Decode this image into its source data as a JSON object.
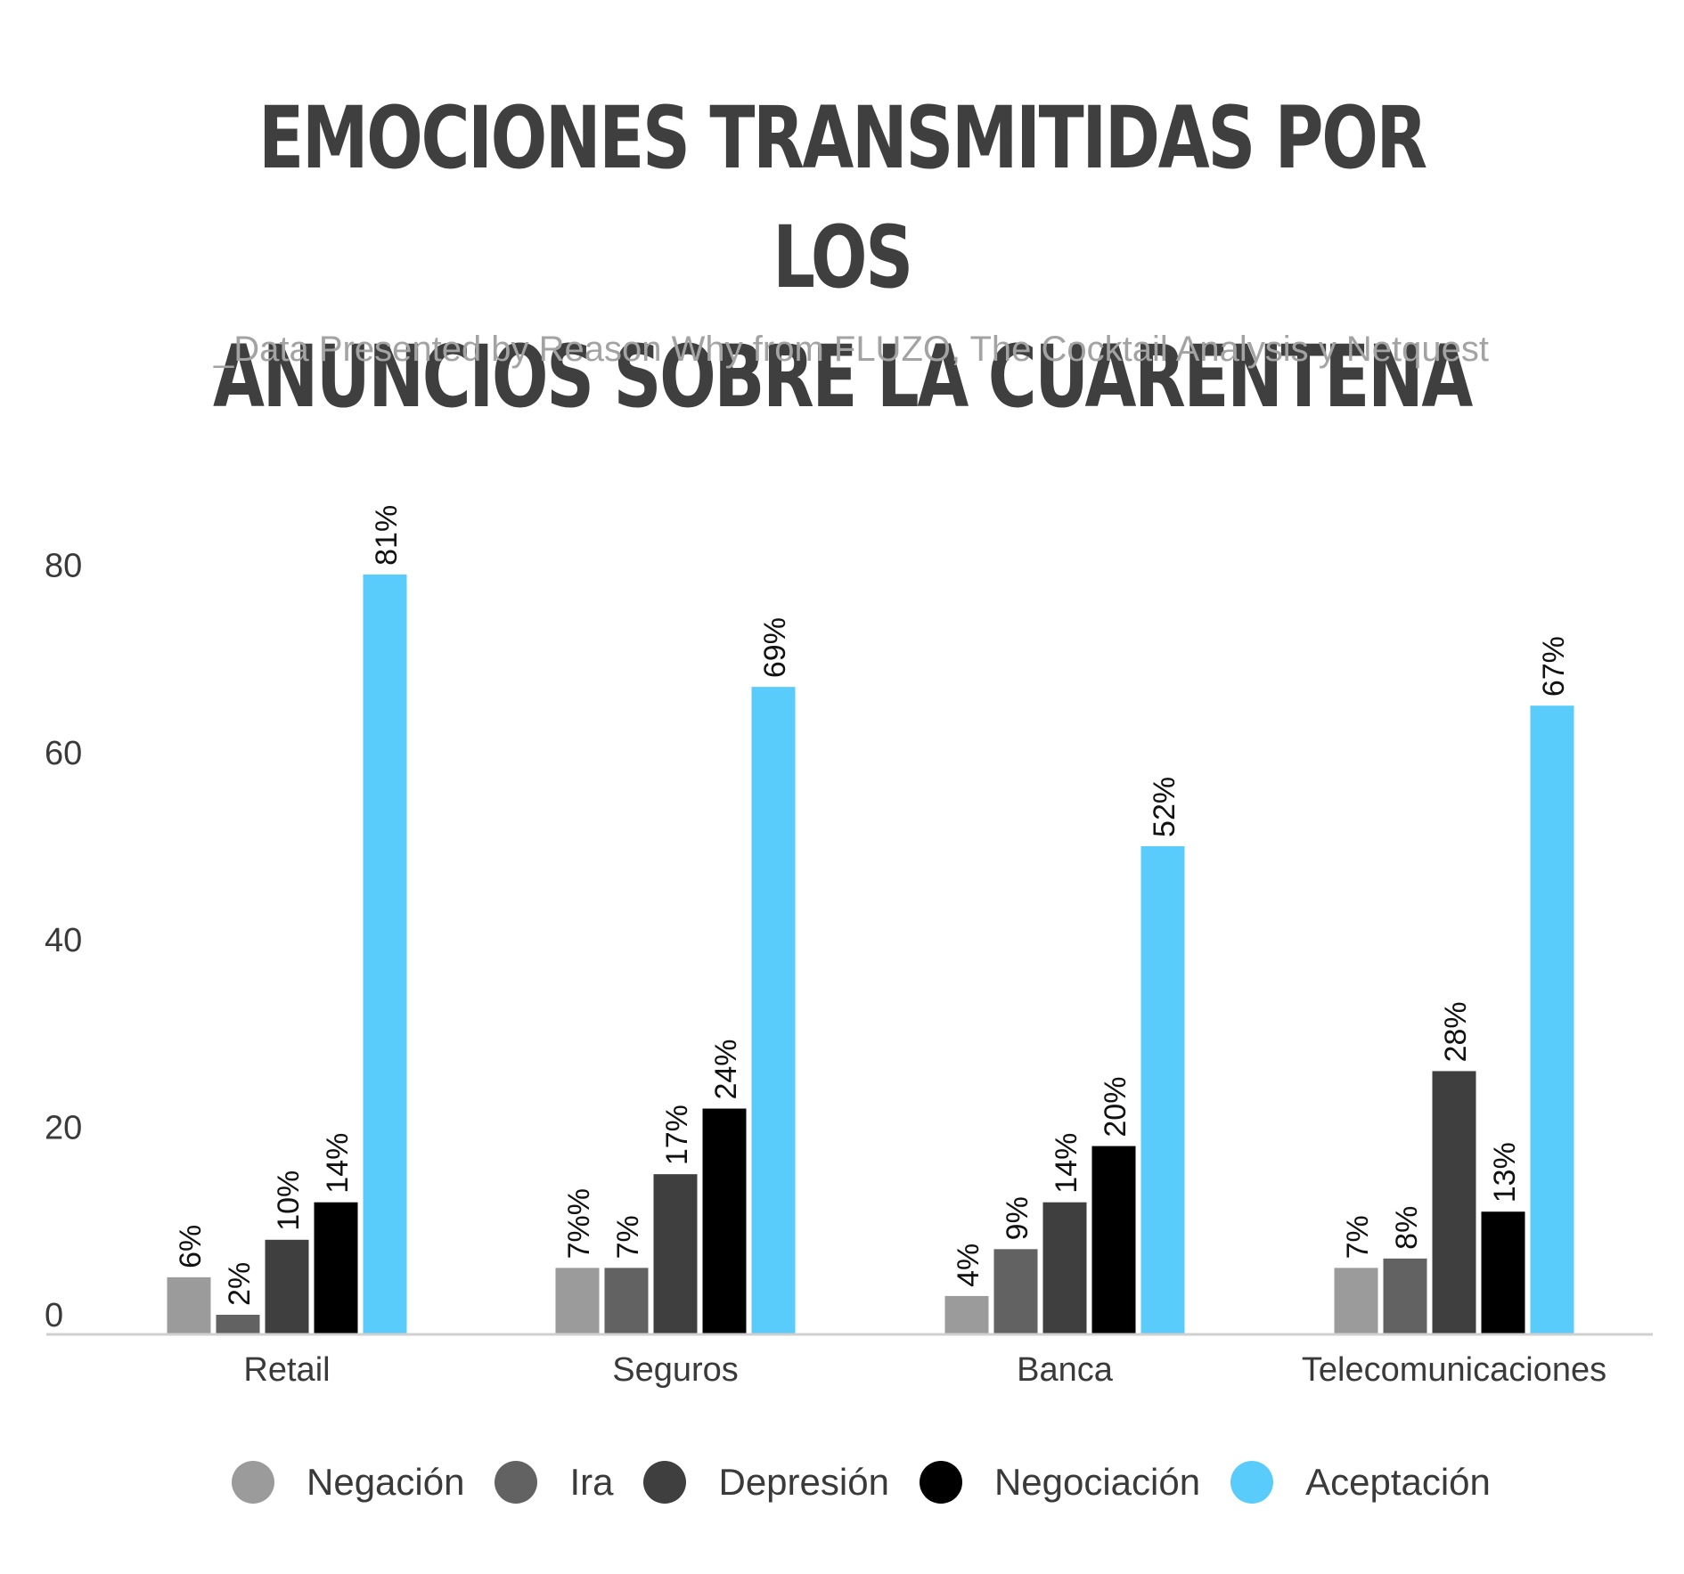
{
  "chart_data": {
    "type": "bar",
    "title_lines": [
      "EMOCIONES TRANSMITIDAS POR LOS",
      "ANUNCIOS SOBRE LA CUARENTENA"
    ],
    "subtitle": "_Data Presented by Reason Why from FLUZO, The Cocktail Analysis y Netquest",
    "categories": [
      "Retail",
      "Seguros",
      "Banca",
      "Telecomunicaciones"
    ],
    "series": [
      {
        "name": "Negación",
        "color": "#9b9b9b",
        "values": [
          6,
          7,
          4,
          7
        ],
        "labels": [
          "6%",
          "7%%",
          "4%",
          "7%"
        ]
      },
      {
        "name": "Ira",
        "color": "#626262",
        "values": [
          2,
          7,
          9,
          8
        ],
        "labels": [
          "2%",
          "7%",
          "9%",
          "8%"
        ]
      },
      {
        "name": "Depresión",
        "color": "#3f3f3f",
        "values": [
          10,
          17,
          14,
          28
        ],
        "labels": [
          "10%",
          "17%",
          "14%",
          "28%"
        ]
      },
      {
        "name": "Negociación",
        "color": "#000000",
        "values": [
          14,
          24,
          20,
          13
        ],
        "labels": [
          "14%",
          "24%",
          "20%",
          "13%"
        ]
      },
      {
        "name": "Aceptación",
        "color": "#59ccfb",
        "values": [
          81,
          69,
          52,
          67
        ],
        "labels": [
          "81%",
          "69%",
          "52%",
          "67%"
        ]
      }
    ],
    "y_ticks": [
      0,
      20,
      40,
      60,
      80
    ],
    "ylim": [
      0,
      80
    ],
    "xlabel": "",
    "ylabel": "",
    "grid": false,
    "legend_position": "bottom"
  }
}
